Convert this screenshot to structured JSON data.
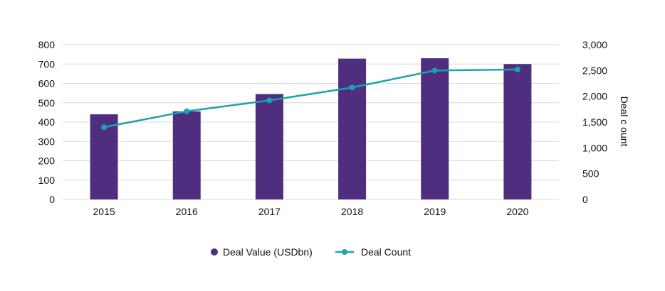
{
  "chart_data": {
    "type": "bar",
    "categories": [
      "2015",
      "2016",
      "2017",
      "2018",
      "2019",
      "2020"
    ],
    "series": [
      {
        "name": "Deal Value (USDbn)",
        "type": "bar",
        "axis": "left",
        "color": "#4f2d7f",
        "values": [
          440,
          455,
          545,
          728,
          730,
          700
        ]
      },
      {
        "name": "Deal Count",
        "type": "line",
        "axis": "right",
        "color": "#1aa3b0",
        "values": [
          1400,
          1710,
          1920,
          2170,
          2500,
          2520
        ]
      }
    ],
    "y_left": {
      "label": "",
      "ylim": [
        0,
        800
      ],
      "ticks": [
        "0",
        "100",
        "200",
        "300",
        "400",
        "500",
        "600",
        "700",
        "800"
      ]
    },
    "y_right": {
      "label": "Deal c ount",
      "ylim": [
        0,
        3000
      ],
      "ticks": [
        "0",
        "500",
        "1,000",
        "1,500",
        "2,000",
        "2,500",
        "3,000"
      ]
    },
    "grid": true,
    "legend": "bottom"
  }
}
